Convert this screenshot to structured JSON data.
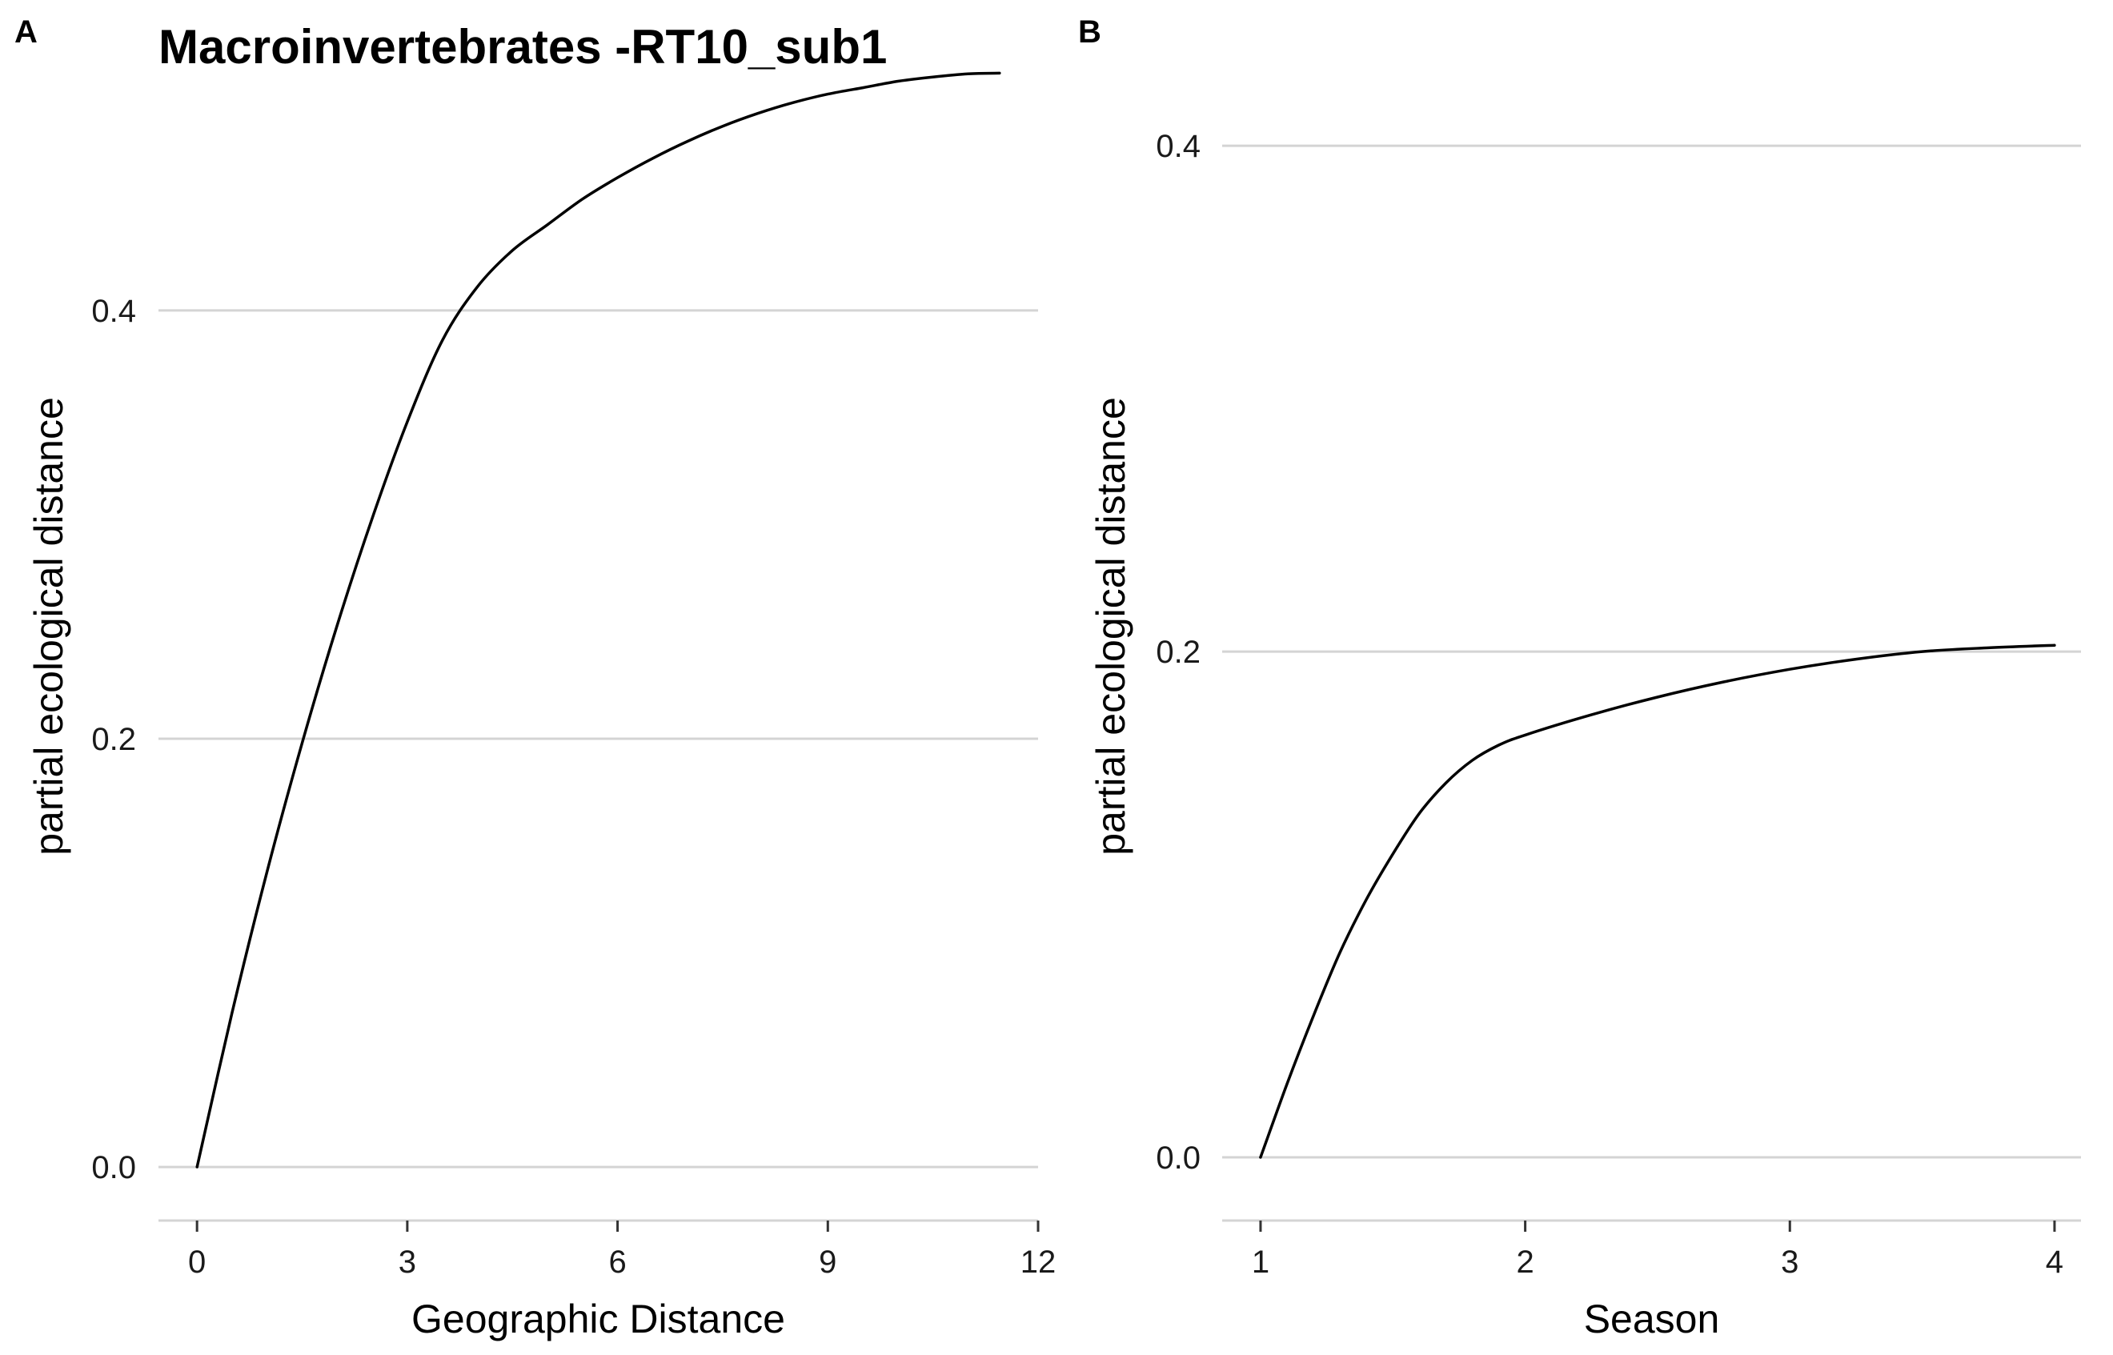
{
  "figure": {
    "title": "Macroinvertebrates -RT10_sub1"
  },
  "chart_data": [
    {
      "panel": "A",
      "type": "line",
      "title": "",
      "xlabel": "Geographic Distance",
      "ylabel": "partial ecological distance",
      "xlim": [
        -0.55,
        12.0
      ],
      "ylim": [
        -0.025,
        0.53
      ],
      "xticks": [
        0,
        3,
        6,
        9,
        12
      ],
      "xtick_labels": [
        "0",
        "3",
        "6",
        "9",
        "12"
      ],
      "yticks": [
        0.0,
        0.2,
        0.4
      ],
      "ytick_labels": [
        "0.0",
        "0.2",
        "0.4"
      ],
      "grid": "horizontal",
      "line_color": "#000000",
      "x": [
        0,
        0.5,
        1.0,
        1.5,
        2.0,
        2.5,
        3.0,
        3.5,
        4.0,
        4.5,
        5.0,
        5.5,
        6.0,
        6.5,
        7.0,
        7.5,
        8.0,
        8.5,
        9.0,
        9.5,
        10.0,
        10.5,
        11.0,
        11.45
      ],
      "y": [
        0.0,
        0.072,
        0.138,
        0.198,
        0.253,
        0.303,
        0.348,
        0.386,
        0.411,
        0.428,
        0.44,
        0.452,
        0.462,
        0.471,
        0.479,
        0.486,
        0.492,
        0.497,
        0.501,
        0.504,
        0.507,
        0.509,
        0.5105,
        0.5108
      ]
    },
    {
      "panel": "B",
      "type": "line",
      "title": "",
      "xlabel": "Season",
      "ylabel": "partial ecological distance",
      "xlim": [
        0.855,
        4.1
      ],
      "ylim": [
        -0.025,
        0.445
      ],
      "xticks": [
        1,
        2,
        3,
        4
      ],
      "xtick_labels": [
        "1",
        "2",
        "3",
        "4"
      ],
      "yticks": [
        0.0,
        0.2,
        0.4
      ],
      "ytick_labels": [
        "0.0",
        "0.2",
        "0.4"
      ],
      "grid": "horizontal",
      "line_color": "#000000",
      "x": [
        1.0,
        1.1,
        1.2,
        1.3,
        1.4,
        1.5,
        1.6,
        1.7,
        1.8,
        1.9,
        2.0,
        2.25,
        2.5,
        2.75,
        3.0,
        3.25,
        3.5,
        3.75,
        4.0
      ],
      "y": [
        0.0,
        0.029,
        0.056,
        0.081,
        0.102,
        0.12,
        0.136,
        0.148,
        0.157,
        0.163,
        0.167,
        0.175,
        0.182,
        0.188,
        0.193,
        0.197,
        0.2,
        0.2015,
        0.2025
      ]
    }
  ]
}
